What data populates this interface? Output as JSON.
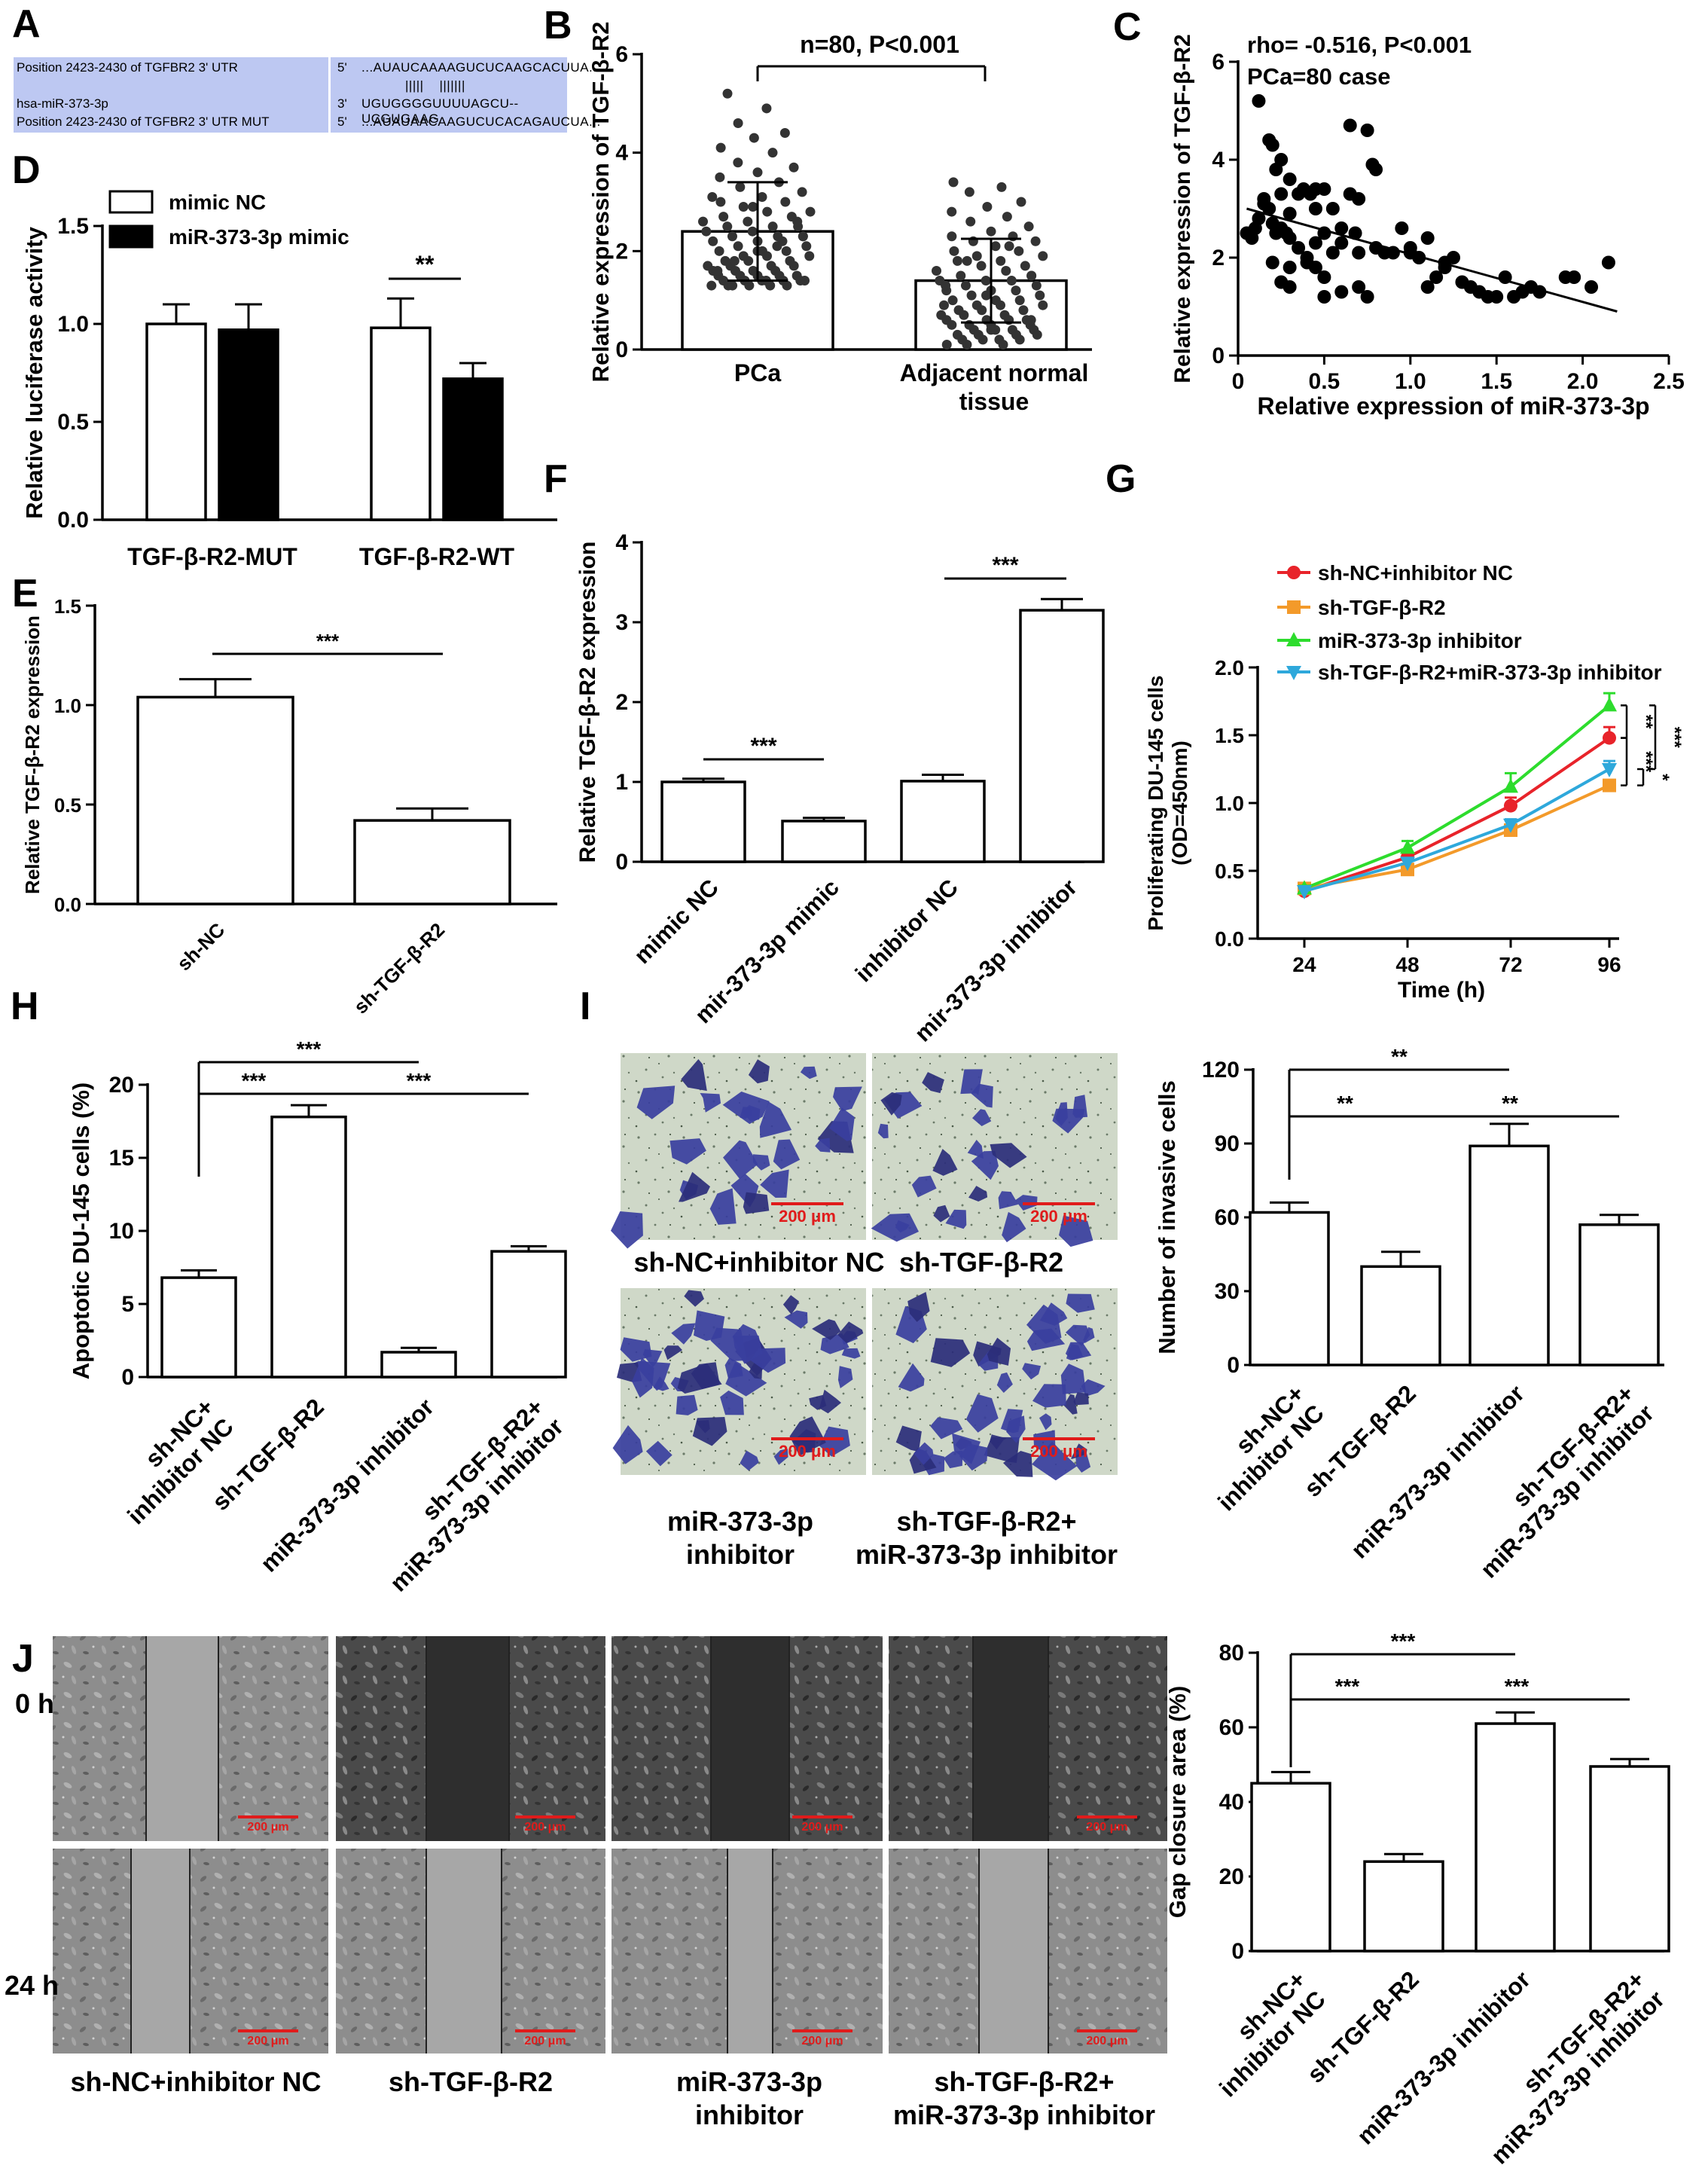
{
  "panel_labels": [
    "A",
    "B",
    "C",
    "D",
    "E",
    "F",
    "G",
    "H",
    "I",
    "J"
  ],
  "panel_a": {
    "rows": [
      {
        "name": "Position 2423-2430 of TGFBR2 3' UTR",
        "end": "5'",
        "seq": "...AUAUCAAAAGUCUCAAGCACUUA..."
      },
      {
        "name": "",
        "end": "",
        "seq": "|||||    |||||||"
      },
      {
        "name": "hsa-miR-373-3p",
        "end": "3'",
        "seq": "UGUGGGGUUUUAGCU--UCGUGAAG"
      },
      {
        "name": "Position 2423-2430 of TGFBR2 3' UTR MUT",
        "end": "5'",
        "seq": "...AUAUAACAAGUCUCACAGAUCUA..."
      }
    ]
  },
  "microscopy_I": {
    "scale_bar": "200 μm",
    "captions": [
      "sh-NC+inhibitor NC",
      "sh-TGF-β-R2",
      "miR-373-3p\ninhibitor",
      "sh-TGF-β-R2+\nmiR-373-3p inhibitor"
    ]
  },
  "microscopy_J": {
    "scale_bar": "200 μm",
    "row_labels": [
      "0 h",
      "24 h"
    ],
    "captions": [
      "sh-NC+inhibitor NC",
      "sh-TGF-β-R2",
      "miR-373-3p\ninhibitor",
      "sh-TGF-β-R2+\nmiR-373-3p inhibitor"
    ]
  },
  "chart_data": [
    {
      "panel": "B",
      "type": "bar",
      "categories": [
        "PCa",
        "Adjacent normal\ntissue"
      ],
      "values": [
        2.4,
        1.4
      ],
      "errors": [
        1.0,
        0.85
      ],
      "ylabel": "Relative expression of TGF-β-R2",
      "ylim": [
        0,
        6
      ],
      "yticks": [
        0,
        2,
        4,
        6
      ],
      "annotation": "n=80, P<0.001",
      "points": [
        [
          5.2,
          4.9,
          4.6,
          4.4,
          4.3,
          4.1,
          4.0,
          3.8,
          3.7,
          3.6,
          3.5,
          3.4,
          3.3,
          3.2,
          3.1,
          3.0,
          3.0,
          2.9,
          2.8,
          2.8,
          2.7,
          2.7,
          2.6,
          2.6,
          2.5,
          2.5,
          2.5,
          2.4,
          2.4,
          2.3,
          2.3,
          2.3,
          2.2,
          2.2,
          2.2,
          2.1,
          2.1,
          2.0,
          2.0,
          2.0,
          1.9,
          1.9,
          1.9,
          1.8,
          1.8,
          1.8,
          1.7,
          1.7,
          1.7,
          1.7,
          1.6,
          1.6,
          1.6,
          1.6,
          1.5,
          1.5,
          1.5,
          1.5,
          1.5,
          1.4,
          1.4,
          1.4,
          1.4,
          1.4,
          1.4,
          1.4,
          1.3,
          1.3,
          1.3,
          1.3,
          1.3,
          1.3,
          2.6,
          2.9,
          3.1,
          2.1,
          1.8,
          2.3,
          2.0,
          1.6
        ],
        [
          3.4,
          3.3,
          3.2,
          3.0,
          2.9,
          2.8,
          2.7,
          2.6,
          2.5,
          2.4,
          2.3,
          2.3,
          2.2,
          2.2,
          2.1,
          2.0,
          2.0,
          1.9,
          1.9,
          1.8,
          1.8,
          1.7,
          1.7,
          1.6,
          1.6,
          1.5,
          1.5,
          1.4,
          1.4,
          1.4,
          1.3,
          1.3,
          1.2,
          1.2,
          1.2,
          1.1,
          1.1,
          1.0,
          1.0,
          1.0,
          0.9,
          0.9,
          0.9,
          0.8,
          0.8,
          0.8,
          0.7,
          0.7,
          0.7,
          0.6,
          0.6,
          0.6,
          0.6,
          0.5,
          0.5,
          0.5,
          0.5,
          0.4,
          0.4,
          0.4,
          0.4,
          0.3,
          0.3,
          0.3,
          0.3,
          0.2,
          0.2,
          0.2,
          0.2,
          0.1,
          0.1,
          0.1,
          1.5,
          1.1,
          0.9,
          2.1,
          1.8,
          0.6,
          0.4,
          1.3
        ]
      ]
    },
    {
      "panel": "C",
      "type": "scatter",
      "xlabel": "Relative expression of miR-373-3p",
      "ylabel": "Relative expression of TGF-β-R2",
      "xlim": [
        0,
        2.5
      ],
      "ylim": [
        0,
        6
      ],
      "xticks": [
        0,
        0.5,
        1.0,
        1.5,
        2.0,
        2.5
      ],
      "yticks": [
        0,
        2,
        4,
        6
      ],
      "annotations": [
        "rho= -0.516, P<0.001",
        "PCa=80 case"
      ],
      "fit": {
        "x": [
          0.05,
          2.2
        ],
        "y": [
          3.0,
          0.9
        ]
      },
      "x": [
        0.12,
        0.18,
        0.2,
        0.22,
        0.25,
        0.3,
        0.45,
        0.65,
        0.7,
        0.75,
        0.78,
        0.8,
        0.15,
        0.18,
        0.25,
        0.3,
        0.35,
        0.38,
        0.42,
        0.45,
        0.5,
        0.55,
        0.6,
        0.65,
        0.68,
        0.05,
        0.08,
        0.1,
        0.12,
        0.15,
        0.2,
        0.22,
        0.25,
        0.28,
        0.3,
        0.35,
        0.4,
        0.45,
        0.5,
        0.55,
        0.6,
        0.7,
        0.8,
        0.85,
        0.9,
        0.95,
        1.0,
        1.05,
        1.1,
        1.2,
        1.25,
        0.2,
        0.25,
        0.3,
        0.4,
        0.45,
        0.5,
        0.6,
        0.7,
        0.75,
        1.1,
        1.15,
        1.2,
        1.3,
        1.35,
        1.4,
        1.45,
        1.5,
        1.55,
        1.6,
        1.65,
        1.7,
        1.75,
        1.9,
        1.95,
        2.05,
        2.15,
        0.5,
        0.3,
        1.0
      ],
      "y": [
        5.2,
        4.4,
        4.3,
        3.8,
        4.0,
        3.6,
        3.4,
        4.7,
        3.2,
        4.6,
        3.9,
        3.8,
        3.2,
        3.0,
        3.3,
        2.9,
        3.3,
        3.4,
        3.3,
        3.0,
        3.4,
        3.0,
        2.6,
        3.3,
        2.5,
        2.5,
        2.4,
        2.6,
        2.8,
        3.1,
        2.7,
        2.5,
        2.6,
        2.5,
        2.4,
        2.2,
        2.0,
        2.3,
        2.5,
        2.1,
        2.3,
        2.1,
        2.2,
        2.1,
        2.1,
        2.6,
        2.1,
        2.0,
        2.4,
        1.9,
        2.0,
        1.9,
        1.5,
        1.4,
        1.9,
        1.8,
        1.6,
        1.3,
        1.4,
        1.2,
        1.4,
        1.6,
        1.8,
        1.5,
        1.4,
        1.3,
        1.2,
        1.2,
        1.6,
        1.2,
        1.3,
        1.4,
        1.3,
        1.6,
        1.6,
        1.4,
        1.9,
        1.2,
        1.8,
        2.2
      ]
    },
    {
      "panel": "D",
      "type": "bar",
      "categories": [
        "TGF-β-R2-MUT",
        "TGF-β-R2-WT"
      ],
      "series": [
        {
          "name": "mimic NC",
          "values": [
            1.0,
            0.98
          ],
          "errors": [
            0.1,
            0.15
          ]
        },
        {
          "name": "miR-373-3p mimic",
          "values": [
            0.97,
            0.72
          ],
          "errors": [
            0.13,
            0.08
          ]
        }
      ],
      "ylabel": "Relative luciferase activity",
      "ylim": [
        0,
        1.5
      ],
      "yticks": [
        0.0,
        0.5,
        1.0,
        1.5
      ],
      "significance": [
        {
          "group": 1,
          "text": "**"
        }
      ]
    },
    {
      "panel": "E",
      "type": "bar",
      "categories": [
        "sh-NC",
        "sh-TGF-β-R2"
      ],
      "values": [
        1.04,
        0.42
      ],
      "errors": [
        0.09,
        0.06
      ],
      "ylabel": "Relative TGF-β-R2 expression",
      "ylim": [
        0,
        1.5
      ],
      "yticks": [
        0.0,
        0.5,
        1.0,
        1.5
      ],
      "significance": [
        {
          "from": 0,
          "to": 1,
          "text": "***"
        }
      ]
    },
    {
      "panel": "F",
      "type": "bar",
      "categories": [
        "mimic NC",
        "mir-373-3p mimic",
        "inhibitor NC",
        "mir-373-3p inhibitor"
      ],
      "values": [
        1.0,
        0.51,
        1.01,
        3.15
      ],
      "errors": [
        0.04,
        0.04,
        0.08,
        0.14
      ],
      "ylabel": "Relative TGF-β-R2  expression",
      "ylim": [
        0,
        4
      ],
      "yticks": [
        0,
        1,
        2,
        3,
        4
      ],
      "significance": [
        {
          "from": 0,
          "to": 1,
          "text": "***"
        },
        {
          "from": 2,
          "to": 3,
          "text": "***"
        }
      ]
    },
    {
      "panel": "G",
      "type": "line",
      "x": [
        24,
        48,
        72,
        96
      ],
      "series": [
        {
          "name": "sh-NC+inhibitor NC",
          "color": "#e8232a",
          "marker": "circle",
          "values": [
            0.35,
            0.6,
            0.98,
            1.48
          ],
          "errors": [
            0.02,
            0.04,
            0.06,
            0.08
          ]
        },
        {
          "name": "sh-TGF-β-R2",
          "color": "#f39a2a",
          "marker": "square",
          "values": [
            0.37,
            0.51,
            0.8,
            1.13
          ],
          "errors": [
            0.02,
            0.03,
            0.04,
            0.04
          ]
        },
        {
          "name": "miR-373-3p inhibitor",
          "color": "#2ddc2d",
          "marker": "triangle-up",
          "values": [
            0.37,
            0.67,
            1.12,
            1.72
          ],
          "errors": [
            0.02,
            0.05,
            0.1,
            0.09
          ]
        },
        {
          "name": "sh-TGF-β-R2+miR-373-3p inhibitor",
          "color": "#2ea8db",
          "marker": "triangle-down",
          "values": [
            0.35,
            0.56,
            0.84,
            1.25
          ],
          "errors": [
            0.02,
            0.03,
            0.04,
            0.06
          ]
        }
      ],
      "xlabel": "Time (h)",
      "ylabel": "Proliferating DU-145 cells\n(OD=450nm)",
      "ylim": [
        0,
        2.0
      ],
      "yticks": [
        0.0,
        0.5,
        1.0,
        1.5,
        2.0
      ],
      "legend": "top",
      "significance": [
        "**",
        "***",
        "***",
        "*"
      ]
    },
    {
      "panel": "H",
      "type": "bar",
      "categories": [
        "sh-NC+\ninhibitor NC",
        "sh-TGF-β-R2",
        "miR-373-3p inhibitor",
        "sh-TGF-β-R2+\nmiR-373-3p inhibitor"
      ],
      "values": [
        6.8,
        17.8,
        1.7,
        8.6
      ],
      "errors": [
        0.5,
        0.8,
        0.3,
        0.35
      ],
      "ylabel": "Apoptotic DU-145 cells (%)",
      "ylim": [
        0,
        20
      ],
      "yticks": [
        0,
        5,
        10,
        15,
        20
      ],
      "significance": [
        {
          "from": 0,
          "to": 2,
          "text": "***"
        },
        {
          "from": 0,
          "to": 1,
          "text": "***"
        },
        {
          "from": 1,
          "to": 3,
          "text": "***"
        }
      ]
    },
    {
      "panel": "I",
      "type": "bar",
      "categories": [
        "sh-NC+\ninhibitor NC",
        "sh-TGF-β-R2",
        "miR-373-3p inhibitor",
        "sh-TGF-β-R2+\nmiR-373-3p inhibitor"
      ],
      "values": [
        62,
        40,
        89,
        57
      ],
      "errors": [
        4,
        6,
        9,
        4
      ],
      "ylabel": "Number of invasive cells",
      "ylim": [
        0,
        120
      ],
      "yticks": [
        0,
        30,
        60,
        90,
        120
      ],
      "significance": [
        {
          "from": 0,
          "to": 2,
          "text": "**"
        },
        {
          "from": 0,
          "to": 1,
          "text": "**"
        },
        {
          "from": 1,
          "to": 3,
          "text": "**"
        }
      ]
    },
    {
      "panel": "J",
      "type": "bar",
      "categories": [
        "sh-NC+\ninhibitor NC",
        "sh-TGF-β-R2",
        "miR-373-3p inhibitor",
        "sh-TGF-β-R2+\nmiR-373-3p inhibitor"
      ],
      "values": [
        45,
        24,
        61,
        49.5
      ],
      "errors": [
        3,
        2,
        3,
        2
      ],
      "ylabel": "Gap closure area (%)",
      "ylim": [
        0,
        80
      ],
      "yticks": [
        0,
        20,
        40,
        60,
        80
      ],
      "significance": [
        {
          "from": 0,
          "to": 2,
          "text": "***"
        },
        {
          "from": 0,
          "to": 1,
          "text": "***"
        },
        {
          "from": 1,
          "to": 3,
          "text": "***"
        }
      ]
    }
  ]
}
